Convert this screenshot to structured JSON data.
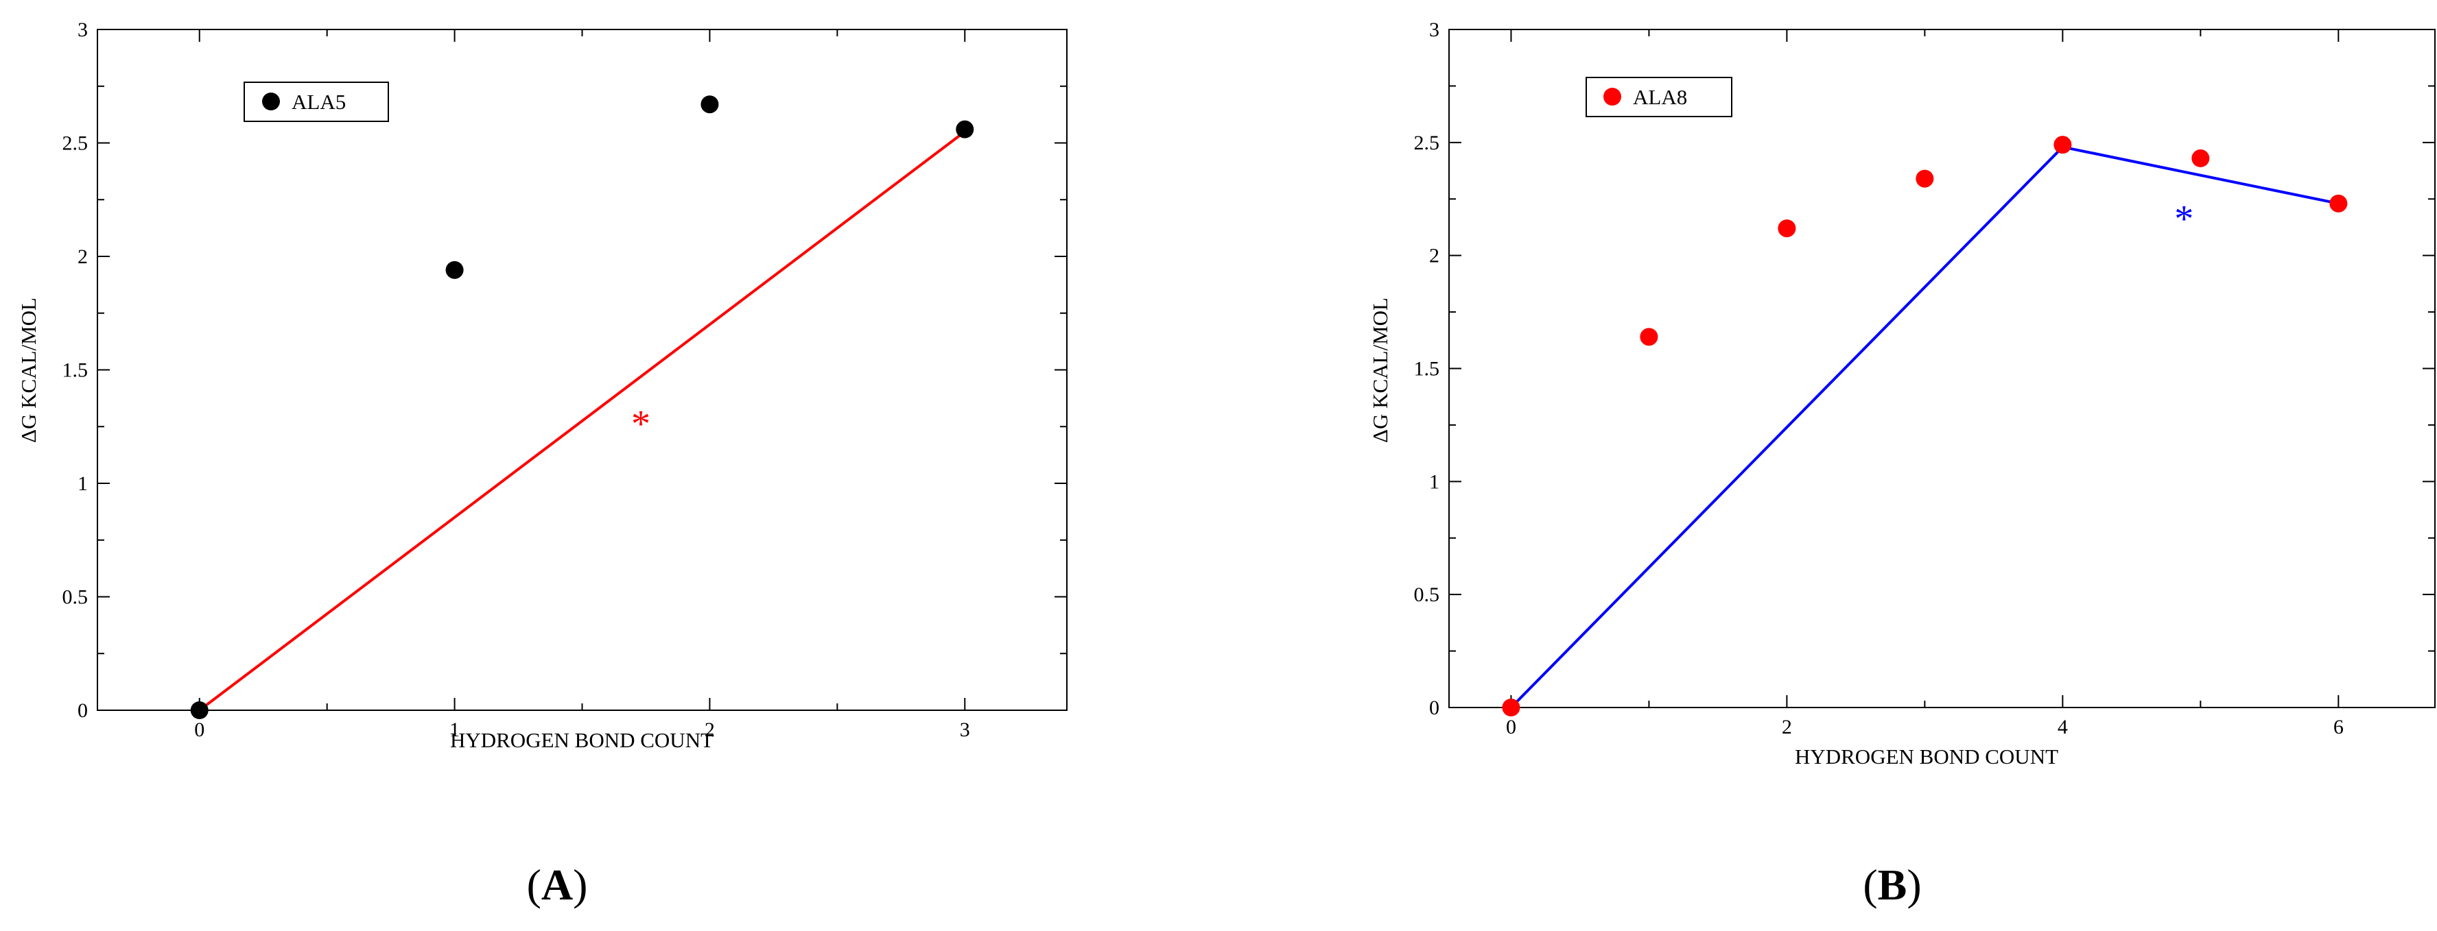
{
  "chart_data": [
    {
      "type": "scatter",
      "panel_label": "A",
      "xlabel": "HYDROGEN BOND COUNT",
      "ylabel": "ΔG KCAL/MOL",
      "xlim": [
        -0.4,
        3.4
      ],
      "ylim": [
        0,
        3
      ],
      "x_ticks": [
        0,
        1,
        2,
        3
      ],
      "x_tick_labels": [
        "0",
        "1",
        "2",
        "3"
      ],
      "y_ticks": [
        0,
        0.5,
        1,
        1.5,
        2,
        2.5,
        3
      ],
      "y_tick_labels": [
        "0",
        "0.5",
        "1",
        "1.5",
        "2",
        "2.5",
        "3"
      ],
      "grid": false,
      "legend_position": "top-left",
      "series": [
        {
          "name": "ALA5",
          "color": "#000000",
          "x": [
            0,
            1,
            2,
            3
          ],
          "y": [
            0.0,
            1.94,
            2.67,
            2.56
          ]
        }
      ],
      "arrows": [
        {
          "from": [
            0,
            0
          ],
          "to": [
            3,
            2.55
          ],
          "color": "#ff0000"
        }
      ],
      "annotations": [
        {
          "text": "*",
          "x": 1.73,
          "y": 1.28,
          "color": "#ff0000"
        }
      ]
    },
    {
      "type": "scatter",
      "panel_label": "B",
      "xlabel": "HYDROGEN BOND COUNT",
      "ylabel": "ΔG KCAL/MOL",
      "xlim": [
        -0.45,
        6.7
      ],
      "ylim": [
        0,
        3
      ],
      "x_ticks": [
        0,
        2,
        4,
        6
      ],
      "x_tick_labels": [
        "0",
        "2",
        "4",
        "6"
      ],
      "y_ticks": [
        0,
        0.5,
        1,
        1.5,
        2,
        2.5,
        3
      ],
      "y_tick_labels": [
        "0",
        "0.5",
        "1",
        "1.5",
        "2",
        "2.5",
        "3"
      ],
      "grid": false,
      "legend_position": "top-left",
      "series": [
        {
          "name": "ALA8",
          "color": "#ff0000",
          "x": [
            0,
            1,
            2,
            3,
            4,
            5,
            6
          ],
          "y": [
            0.0,
            1.64,
            2.12,
            2.34,
            2.49,
            2.43,
            2.23
          ]
        }
      ],
      "arrows": [
        {
          "from": [
            0,
            0
          ],
          "to": [
            4,
            2.48
          ],
          "color": "#0000ff"
        },
        {
          "from": [
            4,
            2.48
          ],
          "to": [
            6,
            2.23
          ],
          "color": "#0000ff"
        }
      ],
      "annotations": [
        {
          "text": "*",
          "x": 4.88,
          "y": 2.18,
          "color": "#0000ff"
        }
      ]
    }
  ]
}
